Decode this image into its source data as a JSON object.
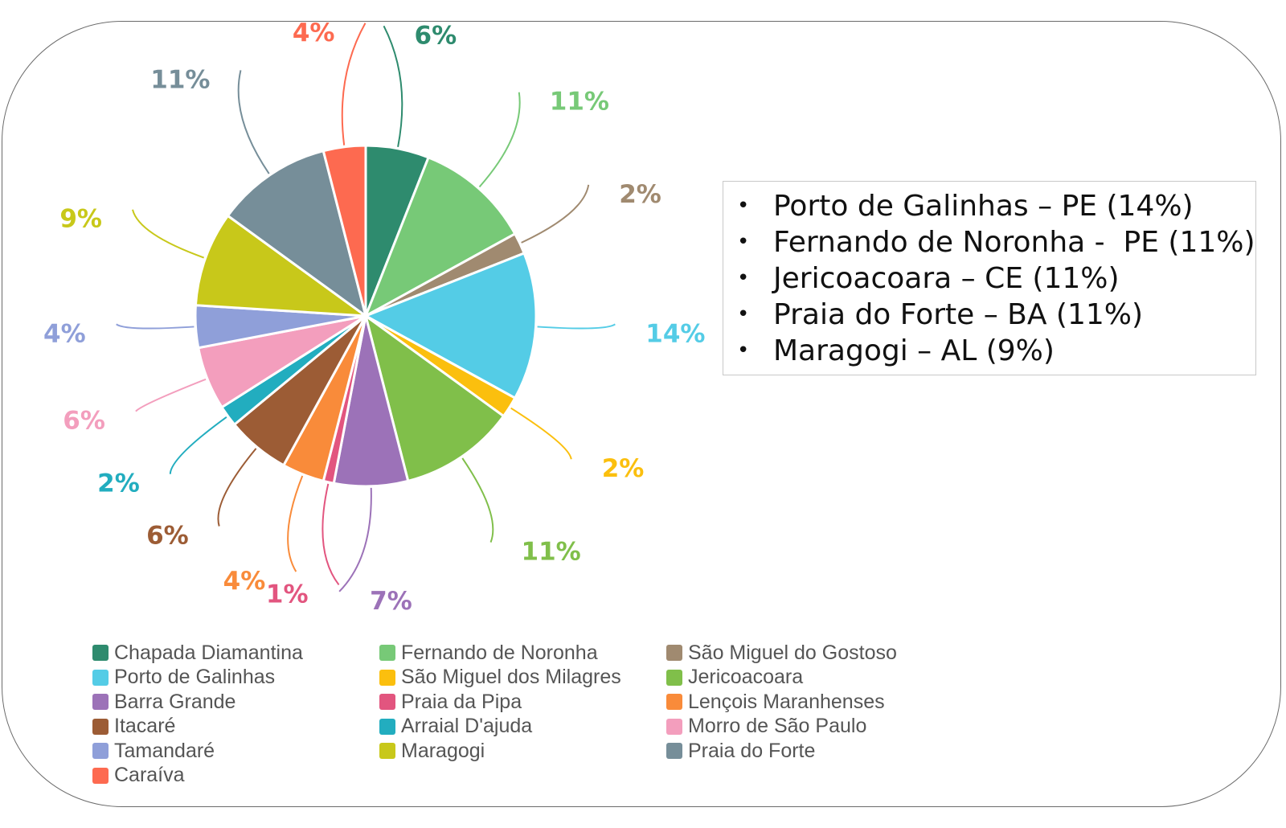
{
  "chart_data": {
    "type": "pie",
    "title": "",
    "labels_unit": "%",
    "slices": [
      {
        "name": "Chapada Diamantina",
        "value": 6,
        "label": "6%",
        "color": "#2e8b6e"
      },
      {
        "name": "Fernando de Noronha",
        "value": 11,
        "label": "11%",
        "color": "#77c977"
      },
      {
        "name": "São Miguel do Gostoso",
        "value": 2,
        "label": "2%",
        "color": "#a08a70"
      },
      {
        "name": "Porto de Galinhas",
        "value": 14,
        "label": "14%",
        "color": "#54cce6"
      },
      {
        "name": "São Miguel dos Milagres",
        "value": 2,
        "label": "2%",
        "color": "#fbbf0e"
      },
      {
        "name": "Jericoacoara",
        "value": 11,
        "label": "11%",
        "color": "#80bf4a"
      },
      {
        "name": "Barra Grande",
        "value": 7,
        "label": "7%",
        "color": "#9c72b8"
      },
      {
        "name": "Praia da Pipa",
        "value": 1,
        "label": "1%",
        "color": "#e2557f"
      },
      {
        "name": "Lençois Maranhenses",
        "value": 4,
        "label": "4%",
        "color": "#f98b3a"
      },
      {
        "name": "Itacaré",
        "value": 6,
        "label": "6%",
        "color": "#9c5c35"
      },
      {
        "name": "Arraial D'ajuda",
        "value": 2,
        "label": "2%",
        "color": "#22adbf"
      },
      {
        "name": "Morro de São Paulo",
        "value": 6,
        "label": "6%",
        "color": "#f39ebd"
      },
      {
        "name": "Tamandaré",
        "value": 4,
        "label": "4%",
        "color": "#8f9fd9"
      },
      {
        "name": "Maragogi",
        "value": 9,
        "label": "9%",
        "color": "#c8c81a"
      },
      {
        "name": "Praia do Forte",
        "value": 11,
        "label": "11%",
        "color": "#768e99"
      },
      {
        "name": "Caraíva",
        "value": 4,
        "label": "4%",
        "color": "#fd6a50"
      }
    ],
    "legend_placement": "bottom"
  },
  "highlights": {
    "bullet": "•",
    "items": [
      "Porto de Galinhas – PE (14%)",
      "Fernando de Noronha -  PE (11%)",
      "Jericoacoara – CE (11%)",
      "Praia do Forte – BA (11%)",
      "Maragogi – AL (9%)"
    ]
  }
}
